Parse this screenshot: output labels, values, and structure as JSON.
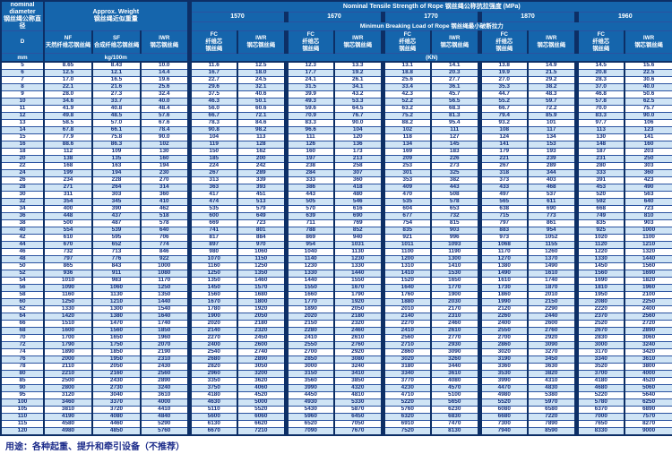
{
  "header": {
    "diameter_title": "nominal\ndiameter\n钢丝绳公称直径",
    "d_symbol": "D",
    "unit_mm": "mm",
    "weight_title": "Approx. Weight\n钢丝绳近似重量",
    "nf_label": "NF\n天然纤维芯钢丝绳",
    "sf_label": "SF\n合成纤维芯钢丝绳",
    "iwr_weight_label": "IWR\n钢芯钢丝绳",
    "unit_weight": "kg/100m",
    "tensile_title": "Nominal Tensile Strength of Rope 钢丝绳公称抗拉强度 (MPa)",
    "breaking_title": "Minimun Breaking Load of Rope 钢丝绳最小破断拉力",
    "strengths": [
      "1570",
      "1670",
      "1770",
      "1870",
      "1960"
    ],
    "fc_label": "FC\n纤维芯\n钢丝绳",
    "iwr_label": "IWR\n钢芯钢丝绳",
    "unit_kn": "(KN)"
  },
  "footer": {
    "usage": "用途：各种起重、提升和牵引设备（不推荐）"
  },
  "table": {
    "column_keys": [
      "d_mm",
      "weight_nf",
      "weight_sf",
      "weight_iwr",
      "kn_1570_fc",
      "kn_1570_iwr",
      "kn_1670_fc",
      "kn_1670_iwr",
      "kn_1770_fc",
      "kn_1770_iwr",
      "kn_1870_fc",
      "kn_1870_iwr",
      "kn_1960_fc",
      "kn_1960_iwr"
    ],
    "group_border_after": [
      3,
      5,
      7,
      9,
      11
    ],
    "rows": [
      [
        "5",
        "8.65",
        "8.43",
        "10.0",
        "11.6",
        "12.5",
        "12.3",
        "13.3",
        "13.1",
        "14.1",
        "13.8",
        "14.9",
        "14.5",
        "15.6"
      ],
      [
        "6",
        "12.5",
        "12.1",
        "14.4",
        "16.7",
        "18.0",
        "17.7",
        "19.2",
        "18.8",
        "20.3",
        "19.9",
        "21.5",
        "20.8",
        "22.5"
      ],
      [
        "7",
        "17.0",
        "16.5",
        "19.6",
        "22.7",
        "24.5",
        "24.1",
        "26.1",
        "25.6",
        "27.7",
        "27.0",
        "29.2",
        "28.3",
        "30.6"
      ],
      [
        "8",
        "22.1",
        "21.6",
        "25.6",
        "29.6",
        "32.1",
        "31.5",
        "34.1",
        "33.4",
        "36.1",
        "35.3",
        "38.2",
        "37.0",
        "40.0"
      ],
      [
        "9",
        "28.0",
        "27.3",
        "32.4",
        "37.5",
        "40.6",
        "39.9",
        "43.2",
        "42.3",
        "45.7",
        "44.7",
        "48.3",
        "46.8",
        "50.6"
      ],
      [
        "10",
        "34.6",
        "33.7",
        "40.0",
        "46.3",
        "50.1",
        "49.3",
        "53.3",
        "52.2",
        "56.5",
        "55.2",
        "59.7",
        "57.8",
        "62.5"
      ],
      [
        "11",
        "41.9",
        "40.8",
        "48.4",
        "56.0",
        "60.6",
        "59.6",
        "64.5",
        "63.2",
        "68.3",
        "66.7",
        "72.2",
        "70.0",
        "75.7"
      ],
      [
        "12",
        "49.8",
        "48.5",
        "57.6",
        "66.7",
        "72.1",
        "70.9",
        "76.7",
        "75.2",
        "81.3",
        "79.4",
        "85.9",
        "83.3",
        "90.0"
      ],
      [
        "13",
        "58.5",
        "57.0",
        "67.6",
        "78.3",
        "84.6",
        "83.3",
        "90.0",
        "88.2",
        "95.4",
        "93.2",
        "101",
        "97.7",
        "106"
      ],
      [
        "14",
        "67.8",
        "66.1",
        "78.4",
        "90.8",
        "98.2",
        "96.6",
        "104",
        "102",
        "111",
        "108",
        "117",
        "113",
        "123"
      ],
      [
        "15",
        "77.9",
        "75.8",
        "90.0",
        "104",
        "113",
        "111",
        "120",
        "118",
        "127",
        "124",
        "134",
        "130",
        "141"
      ],
      [
        "16",
        "88.6",
        "86.3",
        "102",
        "119",
        "128",
        "126",
        "136",
        "134",
        "145",
        "141",
        "153",
        "148",
        "160"
      ],
      [
        "18",
        "112",
        "109",
        "130",
        "150",
        "162",
        "160",
        "173",
        "169",
        "183",
        "179",
        "193",
        "187",
        "203"
      ],
      [
        "20",
        "138",
        "135",
        "160",
        "185",
        "200",
        "197",
        "213",
        "209",
        "226",
        "221",
        "239",
        "231",
        "250"
      ],
      [
        "22",
        "168",
        "163",
        "194",
        "224",
        "242",
        "238",
        "258",
        "253",
        "273",
        "267",
        "289",
        "280",
        "303"
      ],
      [
        "24",
        "199",
        "194",
        "230",
        "267",
        "289",
        "284",
        "307",
        "301",
        "325",
        "318",
        "344",
        "333",
        "360"
      ],
      [
        "26",
        "234",
        "228",
        "270",
        "313",
        "339",
        "333",
        "360",
        "353",
        "382",
        "373",
        "403",
        "391",
        "423"
      ],
      [
        "28",
        "271",
        "264",
        "314",
        "363",
        "393",
        "386",
        "418",
        "409",
        "443",
        "433",
        "468",
        "453",
        "490"
      ],
      [
        "30",
        "311",
        "303",
        "360",
        "417",
        "451",
        "443",
        "480",
        "470",
        "508",
        "497",
        "537",
        "520",
        "563"
      ],
      [
        "32",
        "354",
        "345",
        "410",
        "474",
        "513",
        "505",
        "546",
        "535",
        "578",
        "565",
        "611",
        "592",
        "640"
      ],
      [
        "34",
        "400",
        "390",
        "462",
        "535",
        "579",
        "570",
        "616",
        "604",
        "653",
        "638",
        "690",
        "668",
        "723"
      ],
      [
        "36",
        "448",
        "437",
        "518",
        "600",
        "649",
        "639",
        "690",
        "677",
        "732",
        "715",
        "773",
        "749",
        "810"
      ],
      [
        "38",
        "500",
        "487",
        "578",
        "669",
        "723",
        "711",
        "769",
        "754",
        "815",
        "797",
        "861",
        "835",
        "903"
      ],
      [
        "40",
        "554",
        "539",
        "640",
        "741",
        "801",
        "788",
        "852",
        "835",
        "903",
        "883",
        "954",
        "925",
        "1000"
      ],
      [
        "42",
        "610",
        "595",
        "706",
        "817",
        "884",
        "869",
        "940",
        "921",
        "996",
        "973",
        "1052",
        "1020",
        "1100"
      ],
      [
        "44",
        "670",
        "652",
        "774",
        "897",
        "970",
        "954",
        "1031",
        "1011",
        "1093",
        "1068",
        "1155",
        "1120",
        "1210"
      ],
      [
        "46",
        "732",
        "713",
        "846",
        "980",
        "1060",
        "1040",
        "1130",
        "1100",
        "1190",
        "1170",
        "1260",
        "1220",
        "1320"
      ],
      [
        "48",
        "797",
        "776",
        "922",
        "1070",
        "1150",
        "1140",
        "1230",
        "1200",
        "1300",
        "1270",
        "1370",
        "1330",
        "1440"
      ],
      [
        "50",
        "865",
        "843",
        "1000",
        "1160",
        "1250",
        "1230",
        "1330",
        "1310",
        "1410",
        "1380",
        "1490",
        "1450",
        "1560"
      ],
      [
        "52",
        "936",
        "911",
        "1080",
        "1250",
        "1350",
        "1330",
        "1440",
        "1410",
        "1530",
        "1490",
        "1610",
        "1560",
        "1690"
      ],
      [
        "54",
        "1010",
        "983",
        "1170",
        "1350",
        "1460",
        "1440",
        "1550",
        "1520",
        "1650",
        "1610",
        "1740",
        "1690",
        "1820"
      ],
      [
        "56",
        "1090",
        "1060",
        "1250",
        "1450",
        "1570",
        "1550",
        "1670",
        "1640",
        "1770",
        "1730",
        "1870",
        "1810",
        "1960"
      ],
      [
        "58",
        "1160",
        "1130",
        "1350",
        "1560",
        "1680",
        "1660",
        "1790",
        "1760",
        "1900",
        "1860",
        "2010",
        "1950",
        "2100"
      ],
      [
        "60",
        "1250",
        "1210",
        "1440",
        "1670",
        "1800",
        "1770",
        "1920",
        "1880",
        "2030",
        "1990",
        "2150",
        "2080",
        "2250"
      ],
      [
        "62",
        "1330",
        "1300",
        "1540",
        "1780",
        "1920",
        "1890",
        "2050",
        "2010",
        "2170",
        "2120",
        "2290",
        "2220",
        "2400"
      ],
      [
        "64",
        "1420",
        "1380",
        "1640",
        "1900",
        "2050",
        "2020",
        "2180",
        "2140",
        "2310",
        "2260",
        "2440",
        "2370",
        "2560"
      ],
      [
        "66",
        "1510",
        "1470",
        "1740",
        "2020",
        "2180",
        "2150",
        "2320",
        "2270",
        "2460",
        "2400",
        "2600",
        "2520",
        "2720"
      ],
      [
        "68",
        "1600",
        "1560",
        "1850",
        "2140",
        "2320",
        "2280",
        "2460",
        "2410",
        "2610",
        "2550",
        "2760",
        "2670",
        "2890"
      ],
      [
        "70",
        "1700",
        "1650",
        "1960",
        "2270",
        "2450",
        "2410",
        "2610",
        "2560",
        "2770",
        "2700",
        "2920",
        "2830",
        "3060"
      ],
      [
        "72",
        "1790",
        "1750",
        "2070",
        "2400",
        "2600",
        "2550",
        "2760",
        "2710",
        "2930",
        "2860",
        "3090",
        "3000",
        "3240"
      ],
      [
        "74",
        "1890",
        "1850",
        "2190",
        "2540",
        "2740",
        "2700",
        "2920",
        "2860",
        "3090",
        "3020",
        "3270",
        "3170",
        "3420"
      ],
      [
        "76",
        "2000",
        "1950",
        "2310",
        "2680",
        "2890",
        "2850",
        "3080",
        "3020",
        "3260",
        "3190",
        "3450",
        "3340",
        "3610"
      ],
      [
        "78",
        "2110",
        "2050",
        "2430",
        "2820",
        "3050",
        "3000",
        "3240",
        "3180",
        "3440",
        "3360",
        "3630",
        "3520",
        "3800"
      ],
      [
        "80",
        "2210",
        "2160",
        "2560",
        "2960",
        "3200",
        "3150",
        "3410",
        "3340",
        "3610",
        "3530",
        "3820",
        "3700",
        "4000"
      ],
      [
        "85",
        "2500",
        "2430",
        "2890",
        "3350",
        "3620",
        "3560",
        "3850",
        "3770",
        "4080",
        "3990",
        "4310",
        "4180",
        "4520"
      ],
      [
        "90",
        "2800",
        "2730",
        "3240",
        "3750",
        "4060",
        "3990",
        "4320",
        "4230",
        "4570",
        "4470",
        "4830",
        "4680",
        "5060"
      ],
      [
        "95",
        "3120",
        "3040",
        "3610",
        "4180",
        "4520",
        "4450",
        "4810",
        "4710",
        "5100",
        "4980",
        "5380",
        "5220",
        "5640"
      ],
      [
        "100",
        "3460",
        "3370",
        "4000",
        "4630",
        "5000",
        "4930",
        "5330",
        "5220",
        "5650",
        "5520",
        "5970",
        "5780",
        "6250"
      ],
      [
        "105",
        "3810",
        "3720",
        "4410",
        "5110",
        "5520",
        "5430",
        "5870",
        "5760",
        "6230",
        "6080",
        "6580",
        "6370",
        "6890"
      ],
      [
        "110",
        "4190",
        "4080",
        "4840",
        "5600",
        "6060",
        "5960",
        "6450",
        "6320",
        "6830",
        "6680",
        "7220",
        "7000",
        "7570"
      ],
      [
        "115",
        "4580",
        "4460",
        "5290",
        "6130",
        "6620",
        "6520",
        "7050",
        "6910",
        "7470",
        "7300",
        "7890",
        "7650",
        "8270"
      ],
      [
        "120",
        "4980",
        "4850",
        "5760",
        "6670",
        "7210",
        "7090",
        "7670",
        "7520",
        "8130",
        "7940",
        "8590",
        "8330",
        "9000"
      ]
    ]
  },
  "colors": {
    "header_bg": "#1565ac",
    "border_dark": "#0d2f66",
    "row_alt_bg": "#cfe4f5",
    "data_text": "#132f7b"
  }
}
